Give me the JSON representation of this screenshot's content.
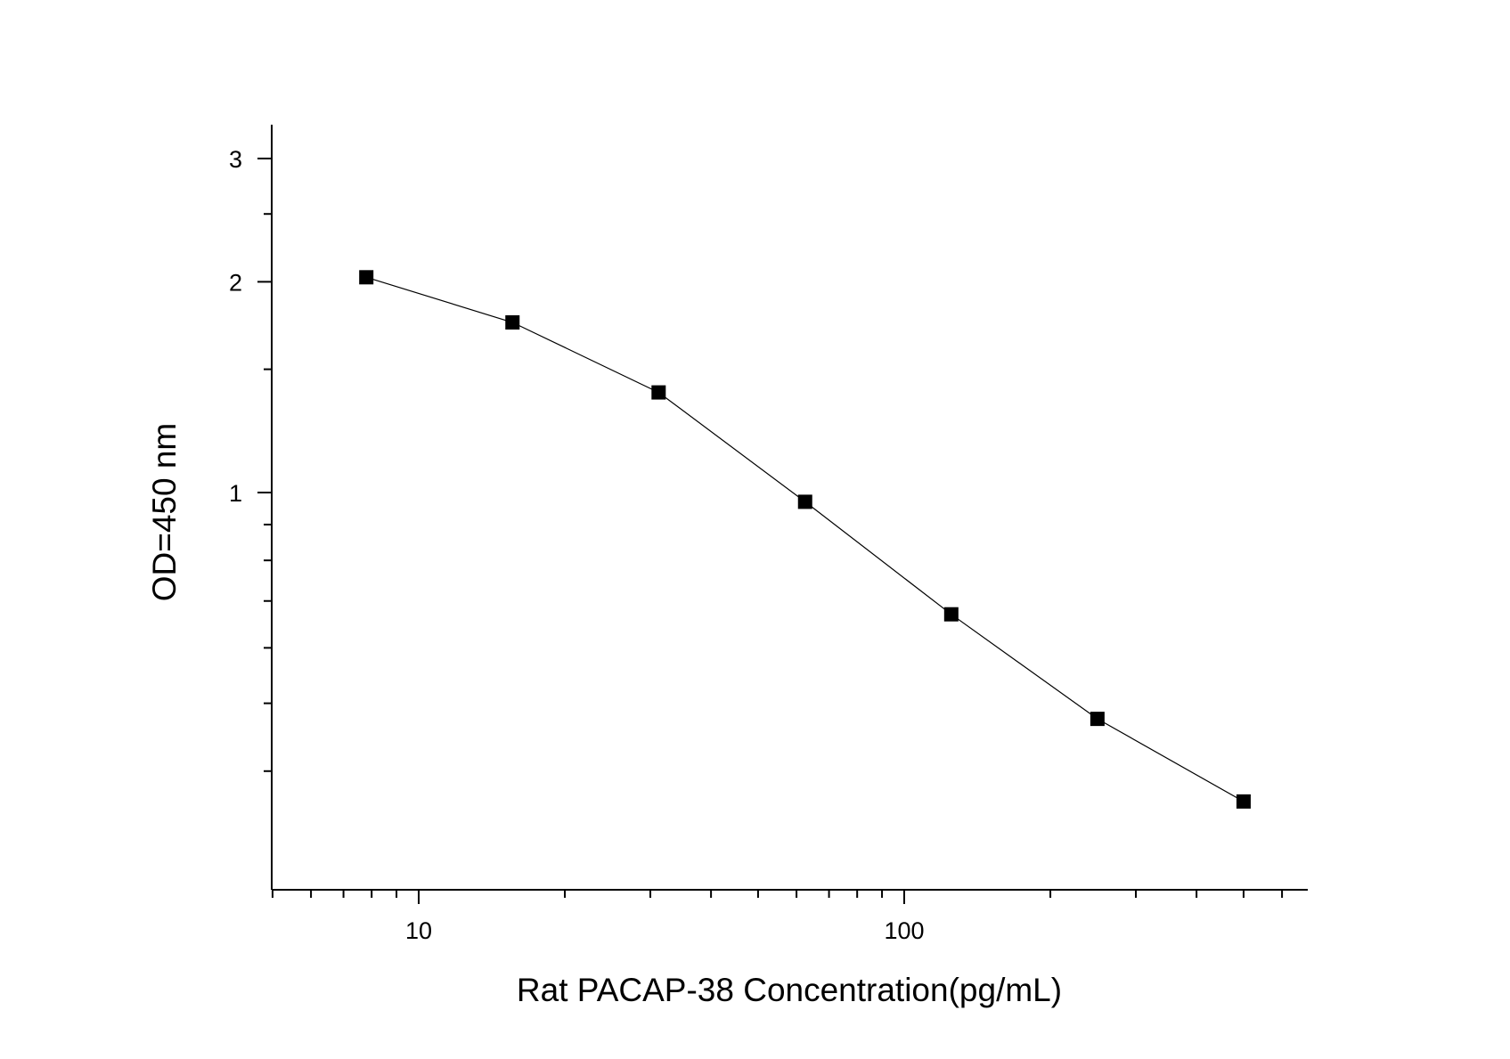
{
  "chart_data": {
    "type": "scatter",
    "title": "",
    "xlabel": "Rat PACAP-38 Concentration(pg/mL)",
    "ylabel": "OD=450 nm",
    "x_scale": "log",
    "y_scale": "log",
    "xlim": [
      5,
      600
    ],
    "ylim": [
      0.3,
      3
    ],
    "x_ticks": [
      {
        "value": 10,
        "label": "10"
      },
      {
        "value": 100,
        "label": "100"
      }
    ],
    "y_ticks": [
      {
        "value": 1,
        "label": "1"
      },
      {
        "value": 2,
        "label": "2"
      },
      {
        "value": 3,
        "label": "3"
      }
    ],
    "grid": false,
    "legend": "none",
    "series": [
      {
        "marker": "square",
        "color": "#000000",
        "line": true,
        "x": [
          7.8,
          15.6,
          31.2,
          62.5,
          125,
          250,
          500
        ],
        "y": [
          2.03,
          1.75,
          1.39,
          0.97,
          0.67,
          0.475,
          0.362
        ]
      }
    ]
  }
}
